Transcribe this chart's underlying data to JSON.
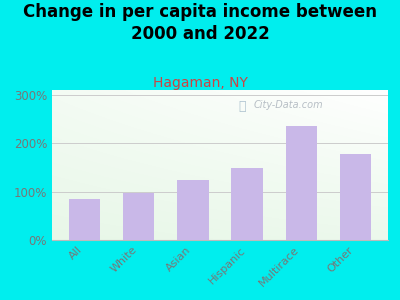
{
  "title": "Change in per capita income between\n2000 and 2022",
  "subtitle": "Hagaman, NY",
  "categories": [
    "All",
    "White",
    "Asian",
    "Hispanic",
    "Multirace",
    "Other"
  ],
  "values": [
    85,
    97,
    125,
    148,
    235,
    178
  ],
  "bar_color": "#c9b8e8",
  "title_fontsize": 12,
  "subtitle_fontsize": 10,
  "subtitle_color": "#cc4444",
  "background_outer": "#00eeee",
  "ylabel_ticks": [
    "0%",
    "100%",
    "200%",
    "300%"
  ],
  "ytick_vals": [
    0,
    100,
    200,
    300
  ],
  "ylim": [
    0,
    310
  ],
  "watermark": "City-Data.com",
  "tick_color": "#777777",
  "axis_color": "#bbbbbb",
  "grid_color": "#cccccc"
}
